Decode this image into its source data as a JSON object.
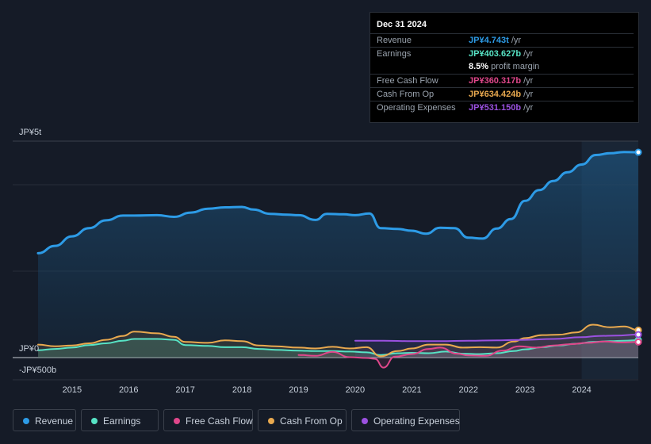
{
  "chart_data": {
    "type": "area",
    "y_axis_labels": {
      "top": "JP¥5t",
      "zero": "JP¥0",
      "bottom": "-JP¥500b"
    },
    "ylim": [
      -500,
      5000
    ],
    "unit": "JP¥ billions",
    "xlim": [
      2014.4,
      2025.0
    ],
    "x_ticks": [
      "2015",
      "2016",
      "2017",
      "2018",
      "2019",
      "2020",
      "2021",
      "2022",
      "2023",
      "2024"
    ],
    "forecast_start": 2024.0,
    "series": [
      {
        "name": "Revenue",
        "color": "#2d9be6",
        "x": [
          2014.4,
          2014.7,
          2015.0,
          2015.3,
          2015.6,
          2015.9,
          2016.1,
          2016.5,
          2016.8,
          2017.1,
          2017.4,
          2017.7,
          2018.0,
          2018.2,
          2018.5,
          2018.8,
          2019.0,
          2019.3,
          2019.5,
          2019.8,
          2020.0,
          2020.25,
          2020.45,
          2020.75,
          2021.0,
          2021.25,
          2021.5,
          2021.75,
          2022.0,
          2022.25,
          2022.5,
          2022.75,
          2023.0,
          2023.25,
          2023.5,
          2023.75,
          2024.0,
          2024.25,
          2024.5,
          2024.75,
          2025.0
        ],
        "values": [
          2410,
          2580,
          2800,
          2990,
          3170,
          3280,
          3280,
          3290,
          3250,
          3350,
          3440,
          3470,
          3480,
          3420,
          3320,
          3300,
          3290,
          3180,
          3320,
          3310,
          3290,
          3330,
          2990,
          2970,
          2930,
          2860,
          3000,
          2990,
          2770,
          2750,
          2980,
          3200,
          3620,
          3870,
          4080,
          4280,
          4460,
          4680,
          4720,
          4750,
          4743
        ]
      },
      {
        "name": "Earnings",
        "color": "#57e3c5",
        "x": [
          2014.4,
          2014.7,
          2015.0,
          2015.3,
          2015.6,
          2015.9,
          2016.1,
          2016.5,
          2016.8,
          2017.0,
          2017.4,
          2017.7,
          2018.0,
          2018.3,
          2018.6,
          2019.0,
          2019.3,
          2019.6,
          2019.9,
          2020.2,
          2020.45,
          2020.75,
          2021.0,
          2021.3,
          2021.6,
          2021.9,
          2022.2,
          2022.5,
          2022.8,
          2023.0,
          2023.3,
          2023.6,
          2023.9,
          2024.2,
          2024.5,
          2024.75,
          2025.0
        ],
        "values": [
          170,
          200,
          230,
          290,
          330,
          390,
          430,
          430,
          410,
          290,
          270,
          240,
          240,
          200,
          180,
          160,
          150,
          150,
          140,
          120,
          60,
          100,
          110,
          100,
          140,
          90,
          80,
          100,
          150,
          190,
          240,
          280,
          320,
          360,
          380,
          390,
          403
        ]
      },
      {
        "name": "Free Cash Flow",
        "color": "#e0478b",
        "x": [
          2019.0,
          2019.3,
          2019.6,
          2019.9,
          2020.2,
          2020.35,
          2020.5,
          2020.7,
          2021.0,
          2021.3,
          2021.5,
          2021.8,
          2022.0,
          2022.3,
          2022.6,
          2022.9,
          2023.2,
          2023.5,
          2023.8,
          2024.1,
          2024.4,
          2024.7,
          2025.0
        ],
        "values": [
          60,
          40,
          130,
          10,
          -10,
          -30,
          -230,
          20,
          80,
          200,
          230,
          90,
          50,
          40,
          160,
          260,
          230,
          280,
          310,
          340,
          370,
          350,
          360
        ]
      },
      {
        "name": "Cash From Op",
        "color": "#e9a94f",
        "x": [
          2014.4,
          2014.7,
          2015.0,
          2015.3,
          2015.6,
          2015.9,
          2016.1,
          2016.5,
          2016.8,
          2017.0,
          2017.4,
          2017.7,
          2018.0,
          2018.3,
          2018.6,
          2019.0,
          2019.3,
          2019.6,
          2019.9,
          2020.2,
          2020.45,
          2020.75,
          2021.0,
          2021.3,
          2021.6,
          2021.9,
          2022.2,
          2022.5,
          2022.8,
          2023.0,
          2023.3,
          2023.6,
          2023.9,
          2024.2,
          2024.5,
          2024.75,
          2025.0
        ],
        "values": [
          300,
          260,
          280,
          330,
          410,
          500,
          600,
          560,
          480,
          360,
          340,
          400,
          380,
          280,
          260,
          230,
          210,
          250,
          210,
          240,
          30,
          150,
          210,
          300,
          300,
          230,
          240,
          230,
          370,
          450,
          520,
          530,
          580,
          760,
          700,
          720,
          634
        ]
      },
      {
        "name": "Operating Expenses",
        "color": "#9b51e0",
        "x": [
          2020.0,
          2020.5,
          2021.0,
          2021.5,
          2022.0,
          2022.5,
          2023.0,
          2023.5,
          2024.0,
          2024.3,
          2024.6,
          2025.0
        ],
        "values": [
          390,
          390,
          380,
          380,
          390,
          400,
          410,
          430,
          470,
          500,
          510,
          531
        ]
      }
    ]
  },
  "tooltip": {
    "date": "Dec 31 2024",
    "rows": [
      {
        "label": "Revenue",
        "value": "JP¥4.743t",
        "unit": "/yr",
        "color": "#2d9be6"
      },
      {
        "label": "Earnings",
        "value": "JP¥403.627b",
        "unit": "/yr",
        "color": "#57e3c5"
      },
      {
        "label": "Free Cash Flow",
        "value": "JP¥360.317b",
        "unit": "/yr",
        "color": "#e0478b"
      },
      {
        "label": "Cash From Op",
        "value": "JP¥634.424b",
        "unit": "/yr",
        "color": "#e9a94f"
      },
      {
        "label": "Operating Expenses",
        "value": "JP¥531.150b",
        "unit": "/yr",
        "color": "#9b51e0"
      }
    ],
    "profit_margin": {
      "value": "8.5%",
      "label": "profit margin"
    }
  },
  "legend": [
    {
      "label": "Revenue",
      "color": "#2d9be6"
    },
    {
      "label": "Earnings",
      "color": "#57e3c5"
    },
    {
      "label": "Free Cash Flow",
      "color": "#e0478b"
    },
    {
      "label": "Cash From Op",
      "color": "#e9a94f"
    },
    {
      "label": "Operating Expenses",
      "color": "#9b51e0"
    }
  ]
}
